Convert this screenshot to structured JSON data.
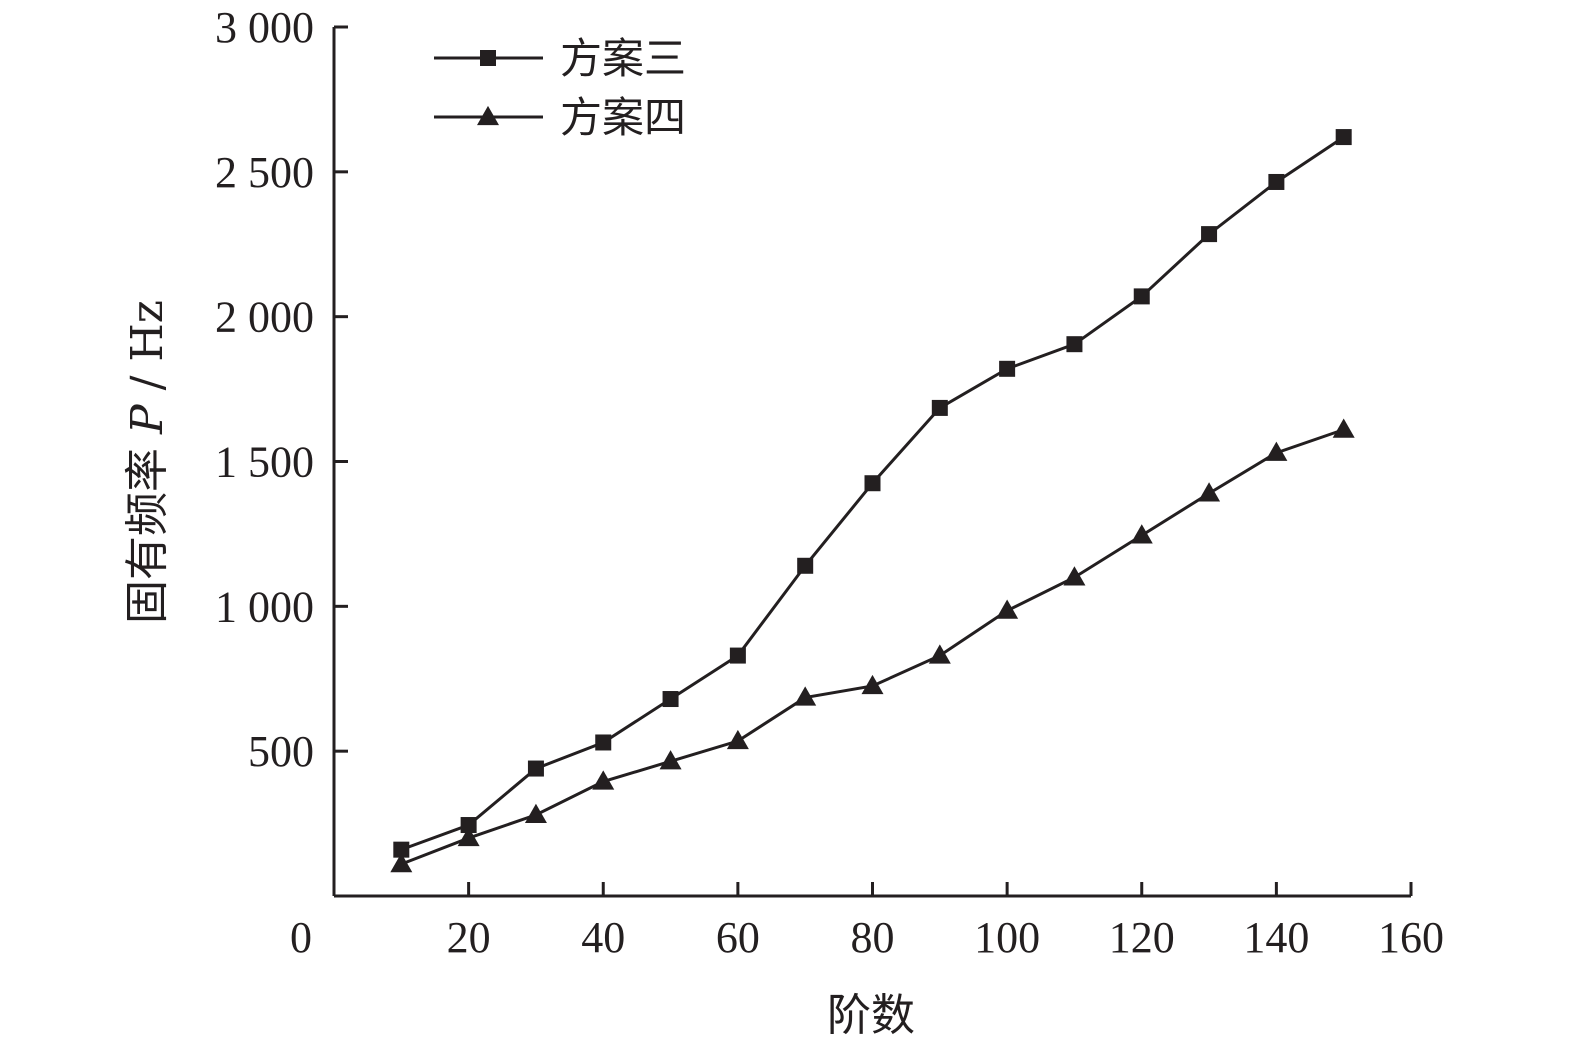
{
  "chart_data": {
    "type": "line",
    "xlabel": "阶数",
    "ylabel": "固有频率 P / Hz",
    "ylabel_prefix": "固有频率 ",
    "ylabel_var": "P",
    "ylabel_unit": " / Hz",
    "xlim": [
      0,
      160
    ],
    "ylim": [
      0,
      3000
    ],
    "x_ticks": [
      0,
      20,
      40,
      60,
      80,
      100,
      120,
      140,
      160
    ],
    "x_tick_labels": [
      "0",
      "20",
      "40",
      "60",
      "80",
      "100",
      "120",
      "140",
      "160"
    ],
    "y_ticks": [
      500,
      1000,
      1500,
      2000,
      2500,
      3000
    ],
    "y_tick_labels": [
      "500",
      "1 000",
      "1 500",
      "2 000",
      "2 500",
      "3 000"
    ],
    "grid": false,
    "legend_position": "top-left",
    "x": [
      10,
      20,
      30,
      40,
      50,
      60,
      70,
      80,
      90,
      100,
      110,
      120,
      130,
      140,
      150
    ],
    "series": [
      {
        "name": "方案三",
        "marker": "square",
        "values": [
          160,
          245,
          440,
          530,
          680,
          830,
          1140,
          1425,
          1685,
          1820,
          1905,
          2070,
          2285,
          2465,
          2620
        ]
      },
      {
        "name": "方案四",
        "marker": "triangle",
        "values": [
          110,
          200,
          280,
          395,
          465,
          535,
          685,
          725,
          830,
          985,
          1100,
          1245,
          1390,
          1530,
          1610
        ]
      }
    ],
    "colors": {
      "ink": "#231f20"
    }
  }
}
